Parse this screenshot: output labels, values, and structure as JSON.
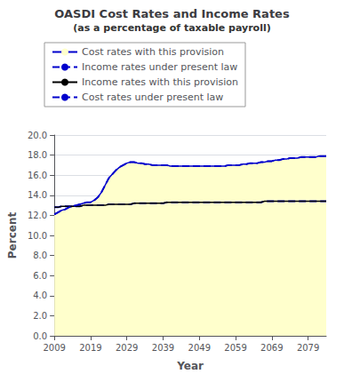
{
  "chart_data": {
    "type": "line",
    "title": "OASDI Cost Rates and Income Rates",
    "subtitle": "(as a percentage of taxable payroll)",
    "xlabel": "Year",
    "ylabel": "Percent",
    "x": [
      2009,
      2010,
      2011,
      2012,
      2013,
      2014,
      2015,
      2016,
      2017,
      2018,
      2019,
      2020,
      2021,
      2022,
      2023,
      2024,
      2025,
      2026,
      2027,
      2028,
      2029,
      2030,
      2031,
      2032,
      2033,
      2034,
      2035,
      2036,
      2037,
      2038,
      2039,
      2040,
      2041,
      2042,
      2043,
      2044,
      2045,
      2046,
      2047,
      2048,
      2049,
      2050,
      2051,
      2052,
      2053,
      2054,
      2055,
      2056,
      2057,
      2058,
      2059,
      2060,
      2061,
      2062,
      2063,
      2064,
      2065,
      2066,
      2067,
      2068,
      2069,
      2070,
      2071,
      2072,
      2073,
      2074,
      2075,
      2076,
      2077,
      2078,
      2079,
      2080,
      2081,
      2082,
      2083,
      2084
    ],
    "xlim": [
      2009,
      2084
    ],
    "xticks": [
      2009,
      2019,
      2029,
      2039,
      2049,
      2059,
      2069,
      2079
    ],
    "ylim": [
      0.0,
      20.0
    ],
    "yticks": [
      {
        "value": 0.0,
        "label": "0.0"
      },
      {
        "value": 2.0,
        "label": "2.0"
      },
      {
        "value": 4.0,
        "label": "4.0"
      },
      {
        "value": 6.0,
        "label": "6.0"
      },
      {
        "value": 8.0,
        "label": "8.0"
      },
      {
        "value": 10.0,
        "label": "10.0"
      },
      {
        "value": 12.0,
        "label": "12.0"
      },
      {
        "value": 14.0,
        "label": "14.0"
      },
      {
        "value": 16.0,
        "label": "16.0"
      },
      {
        "value": 18.0,
        "label": "18.0"
      },
      {
        "value": 20.0,
        "label": "20.0"
      }
    ],
    "grid": "y",
    "legend": "upper left",
    "series": [
      {
        "name": "Cost rates with this provision",
        "type": "area",
        "color": "#ffffcc",
        "edge_color": "#0000cc",
        "line_style": "solid",
        "values": [
          12.1,
          12.3,
          12.5,
          12.6,
          12.8,
          12.9,
          13.0,
          13.1,
          13.2,
          13.3,
          13.3,
          13.5,
          13.8,
          14.3,
          15.0,
          15.7,
          16.1,
          16.5,
          16.8,
          17.0,
          17.2,
          17.3,
          17.3,
          17.2,
          17.2,
          17.1,
          17.1,
          17.0,
          17.0,
          17.0,
          17.0,
          17.0,
          16.9,
          16.9,
          16.9,
          16.9,
          16.9,
          16.9,
          16.9,
          16.9,
          16.9,
          16.9,
          16.9,
          16.9,
          16.9,
          16.9,
          16.9,
          16.9,
          17.0,
          17.0,
          17.0,
          17.0,
          17.1,
          17.1,
          17.2,
          17.2,
          17.2,
          17.3,
          17.3,
          17.4,
          17.4,
          17.5,
          17.5,
          17.6,
          17.6,
          17.7,
          17.7,
          17.7,
          17.8,
          17.8,
          17.8,
          17.8,
          17.8,
          17.9,
          17.9,
          17.9
        ]
      },
      {
        "name": "Income rates under present law",
        "type": "line",
        "color": "#0000cc",
        "line_style": "dashed",
        "values": [
          12.8,
          12.8,
          12.9,
          12.9,
          12.9,
          12.9,
          12.9,
          12.9,
          13.0,
          13.0,
          13.0,
          13.0,
          13.0,
          13.0,
          13.0,
          13.1,
          13.1,
          13.1,
          13.1,
          13.1,
          13.1,
          13.1,
          13.2,
          13.2,
          13.2,
          13.2,
          13.2,
          13.2,
          13.2,
          13.2,
          13.2,
          13.3,
          13.3,
          13.3,
          13.3,
          13.3,
          13.3,
          13.3,
          13.3,
          13.3,
          13.3,
          13.3,
          13.3,
          13.3,
          13.3,
          13.3,
          13.3,
          13.3,
          13.3,
          13.3,
          13.3,
          13.3,
          13.3,
          13.3,
          13.3,
          13.3,
          13.3,
          13.3,
          13.4,
          13.4,
          13.4,
          13.4,
          13.4,
          13.4,
          13.4,
          13.4,
          13.4,
          13.4,
          13.4,
          13.4,
          13.4,
          13.4,
          13.4,
          13.4,
          13.4,
          13.4
        ]
      },
      {
        "name": "Income rates with this provision",
        "type": "line",
        "color": "#000000",
        "line_style": "solid",
        "values": [
          12.8,
          12.8,
          12.9,
          12.9,
          12.9,
          12.9,
          12.9,
          12.9,
          13.0,
          13.0,
          13.0,
          13.0,
          13.0,
          13.0,
          13.0,
          13.1,
          13.1,
          13.1,
          13.1,
          13.1,
          13.1,
          13.1,
          13.2,
          13.2,
          13.2,
          13.2,
          13.2,
          13.2,
          13.2,
          13.2,
          13.2,
          13.3,
          13.3,
          13.3,
          13.3,
          13.3,
          13.3,
          13.3,
          13.3,
          13.3,
          13.3,
          13.3,
          13.3,
          13.3,
          13.3,
          13.3,
          13.3,
          13.3,
          13.3,
          13.3,
          13.3,
          13.3,
          13.3,
          13.3,
          13.3,
          13.3,
          13.3,
          13.3,
          13.4,
          13.4,
          13.4,
          13.4,
          13.4,
          13.4,
          13.4,
          13.4,
          13.4,
          13.4,
          13.4,
          13.4,
          13.4,
          13.4,
          13.4,
          13.4,
          13.4,
          13.4
        ]
      },
      {
        "name": "Cost rates under present law",
        "type": "line",
        "color": "#0000cc",
        "line_style": "dashed",
        "values": [
          12.1,
          12.3,
          12.5,
          12.6,
          12.8,
          12.9,
          13.0,
          13.1,
          13.2,
          13.3,
          13.3,
          13.5,
          13.8,
          14.3,
          15.0,
          15.7,
          16.1,
          16.5,
          16.8,
          17.0,
          17.2,
          17.3,
          17.3,
          17.2,
          17.2,
          17.1,
          17.1,
          17.0,
          17.0,
          17.0,
          17.0,
          17.0,
          16.9,
          16.9,
          16.9,
          16.9,
          16.9,
          16.9,
          16.9,
          16.9,
          16.9,
          16.9,
          16.9,
          16.9,
          16.9,
          16.9,
          16.9,
          16.9,
          17.0,
          17.0,
          17.0,
          17.0,
          17.1,
          17.1,
          17.2,
          17.2,
          17.2,
          17.3,
          17.3,
          17.4,
          17.4,
          17.5,
          17.5,
          17.6,
          17.6,
          17.7,
          17.7,
          17.7,
          17.8,
          17.8,
          17.8,
          17.8,
          17.8,
          17.9,
          17.9,
          17.9
        ]
      }
    ]
  }
}
